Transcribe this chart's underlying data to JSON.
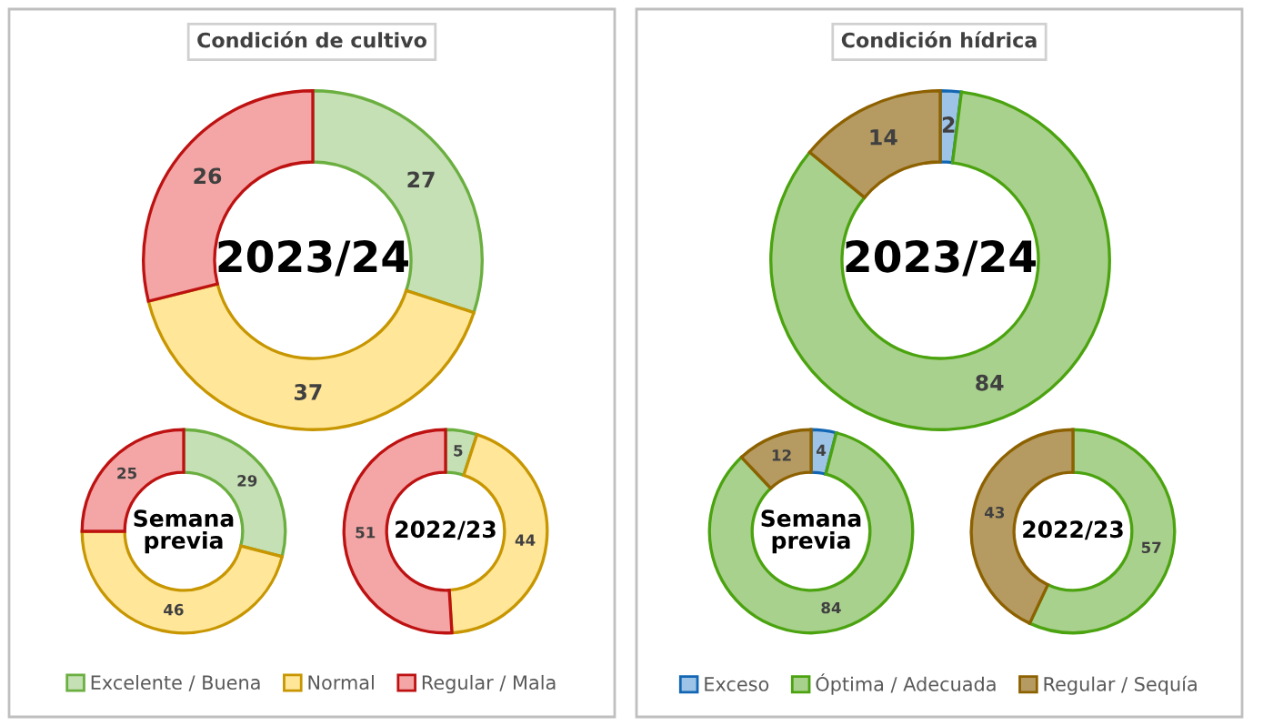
{
  "chart_data": [
    {
      "type": "donut",
      "title": "Condición de cultivo",
      "categories": [
        "Excelente / Buena",
        "Normal",
        "Regular / Mala"
      ],
      "colors": [
        "#c5e0b4",
        "#ffe699",
        "#f4a6a6"
      ],
      "data_labels": true,
      "legend": "bottom",
      "series": [
        {
          "name": "2023/24",
          "values": [
            27,
            37,
            26
          ]
        },
        {
          "name": "Semana previa",
          "values": [
            29,
            46,
            25
          ]
        },
        {
          "name": "2022/23",
          "values": [
            5,
            44,
            51
          ]
        }
      ]
    },
    {
      "type": "donut",
      "title": "Condición hídrica",
      "categories": [
        "Exceso",
        "Óptima / Adecuada",
        "Regular / Sequía"
      ],
      "colors": [
        "#9dc3e6",
        "#a9d18e",
        "#b59b62"
      ],
      "data_labels": true,
      "legend": "bottom",
      "series": [
        {
          "name": "2023/24",
          "values": [
            2,
            84,
            14
          ]
        },
        {
          "name": "Semana previa",
          "values": [
            4,
            84,
            12
          ]
        },
        {
          "name": "2022/23",
          "values": [
            0,
            57,
            43
          ],
          "value_labels": [
            null,
            "57",
            "43"
          ]
        }
      ]
    }
  ]
}
